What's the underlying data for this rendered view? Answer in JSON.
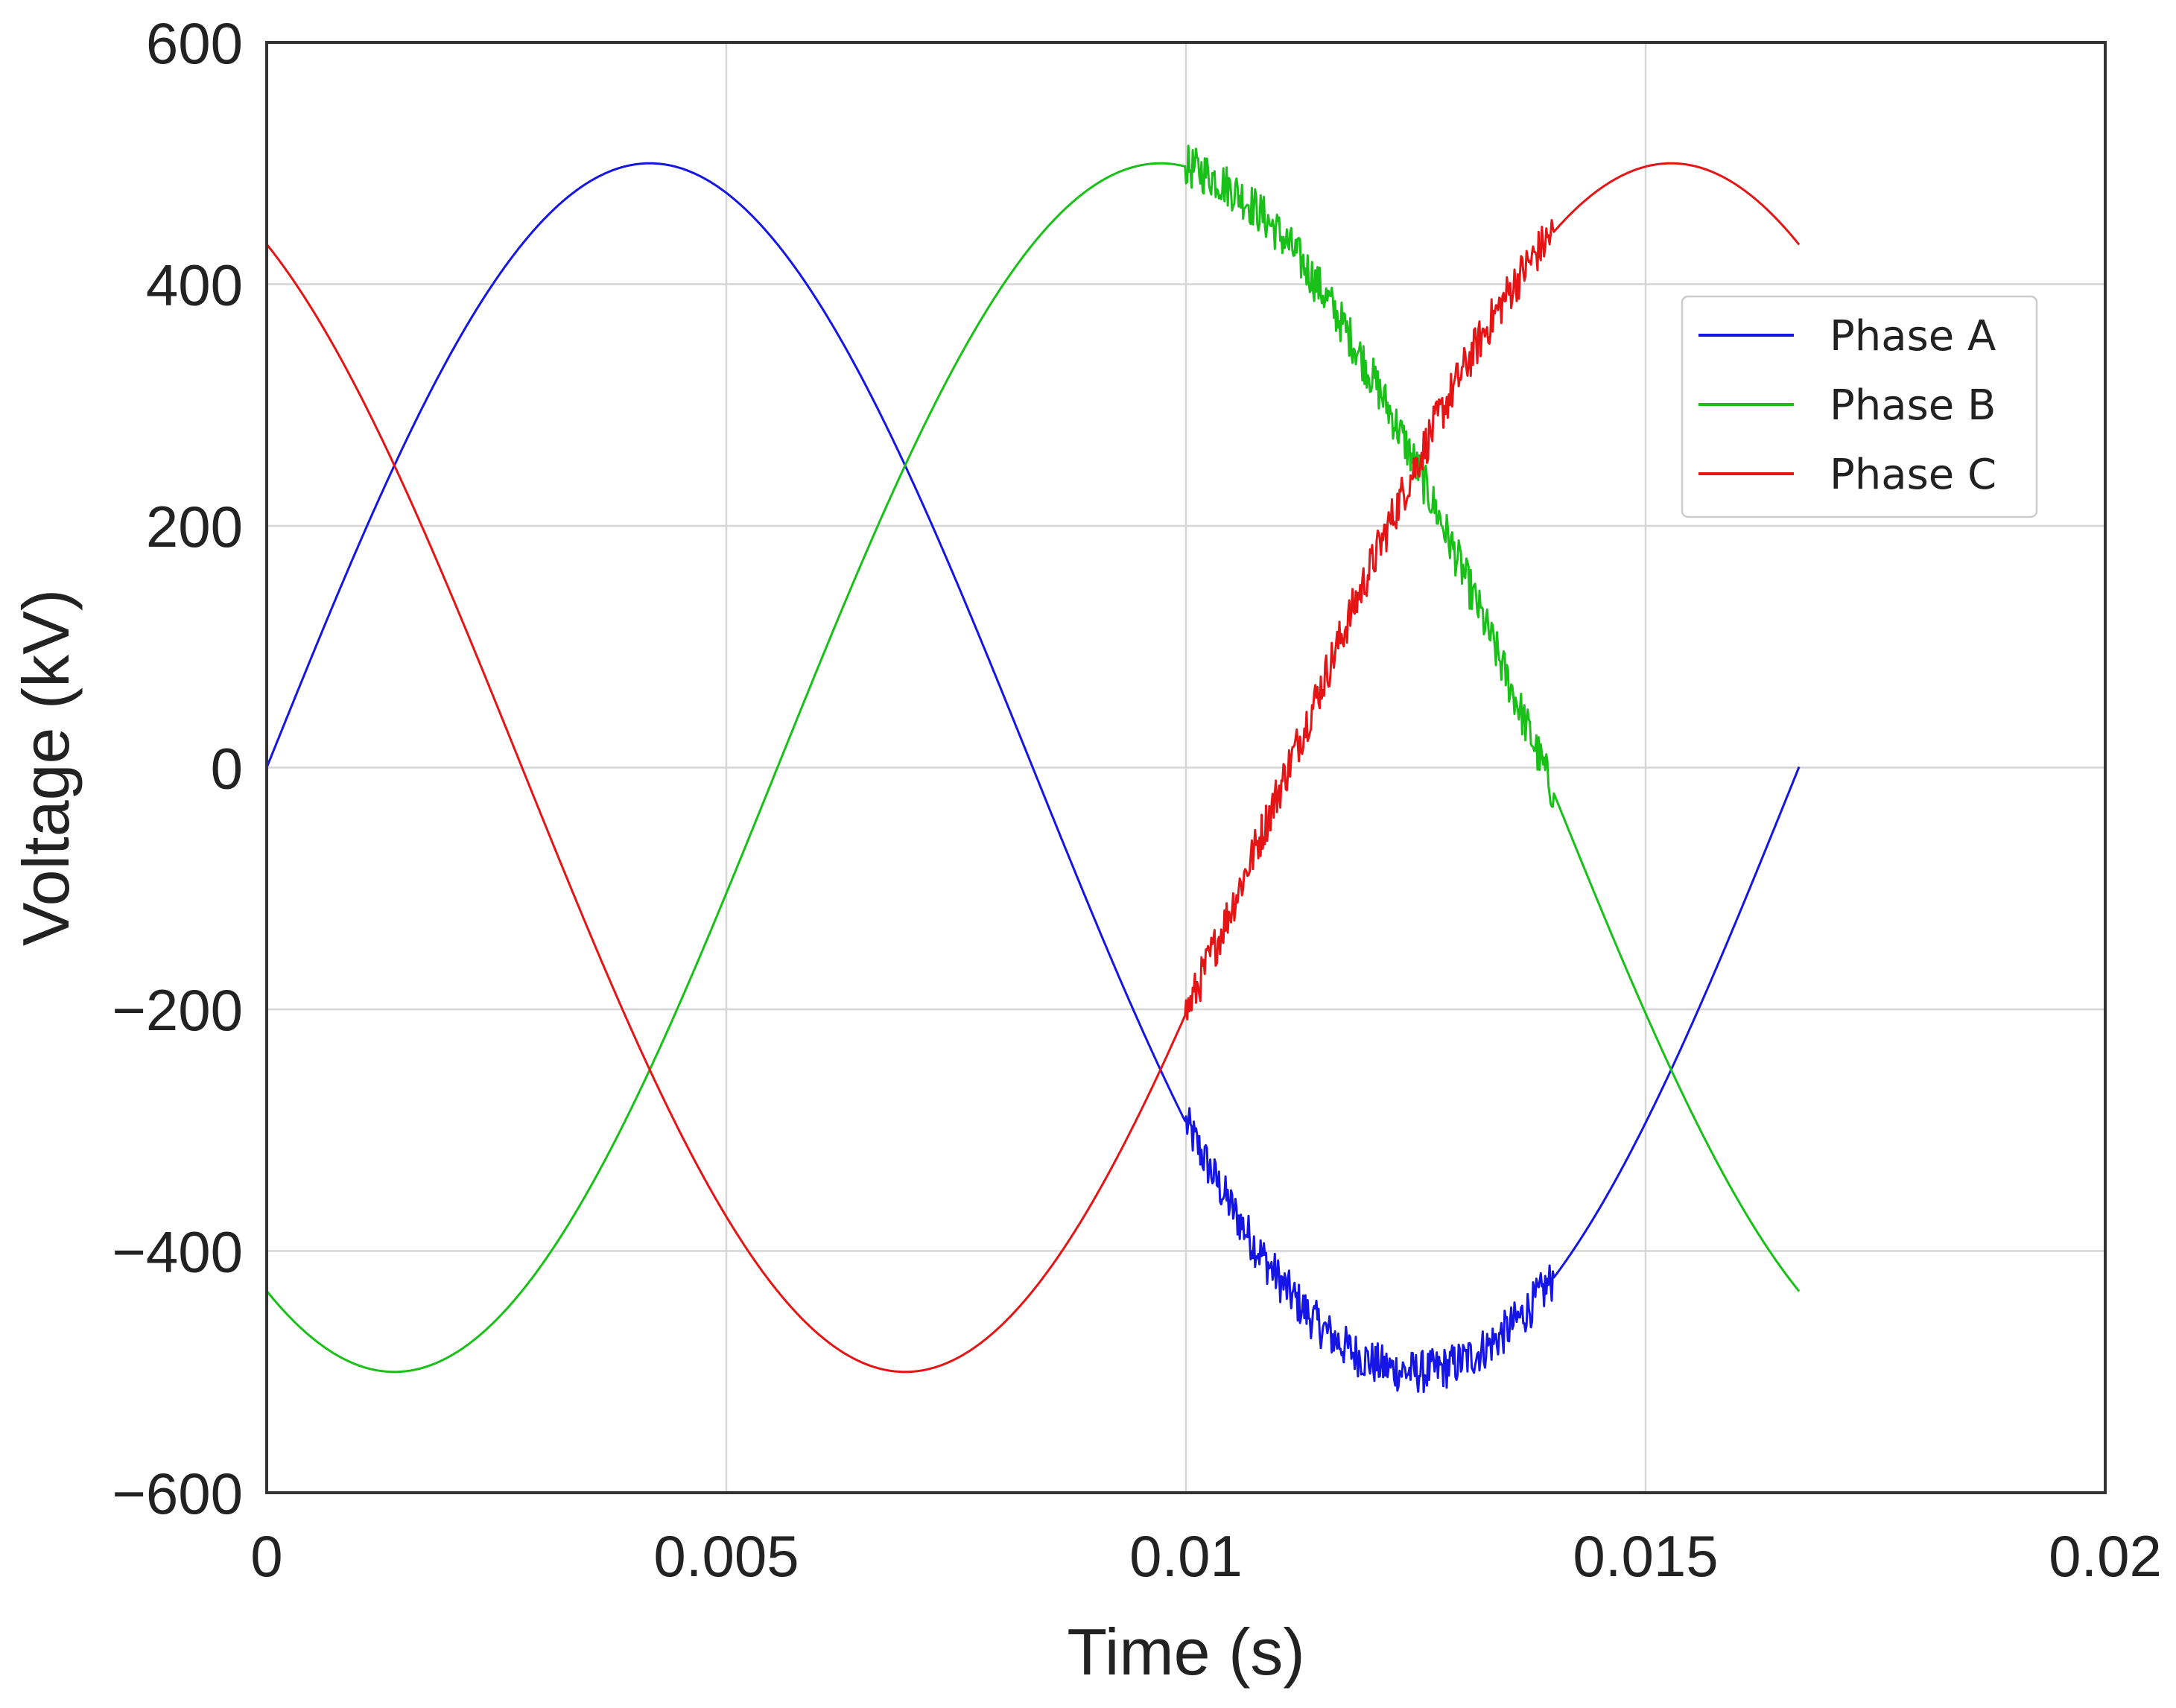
{
  "chart_data": {
    "type": "line",
    "title": "",
    "xlabel": "Time (s)",
    "ylabel": "Voltage (kV)",
    "xlim": [
      0,
      0.02
    ],
    "ylim": [
      -600,
      600
    ],
    "xticks": [
      0,
      0.005,
      0.01,
      0.015,
      0.02
    ],
    "xtick_labels": [
      "0",
      "0.005",
      "0.01",
      "0.015",
      "0.02"
    ],
    "yticks": [
      600,
      400,
      200,
      0,
      -200,
      -400,
      -600
    ],
    "ytick_labels": [
      "600",
      "400",
      "200",
      "0",
      "−200",
      "−400",
      "−600"
    ],
    "grid": true,
    "legend_position": "upper-right",
    "frequency_hz": 60,
    "amplitude_kv": 500,
    "t_start": 0,
    "t_end": 0.01667,
    "noise_window": [
      0.01,
      0.014
    ],
    "noise_amplitude_kv": 18,
    "series": [
      {
        "name": "Phase A",
        "label": "Phase A",
        "color": "#1515e6",
        "phase_deg": 0
      },
      {
        "name": "Phase B",
        "label": "Phase B",
        "color": "#18c018",
        "phase_deg": -120
      },
      {
        "name": "Phase C",
        "label": "Phase C",
        "color": "#e61515",
        "phase_deg": 120
      }
    ]
  }
}
